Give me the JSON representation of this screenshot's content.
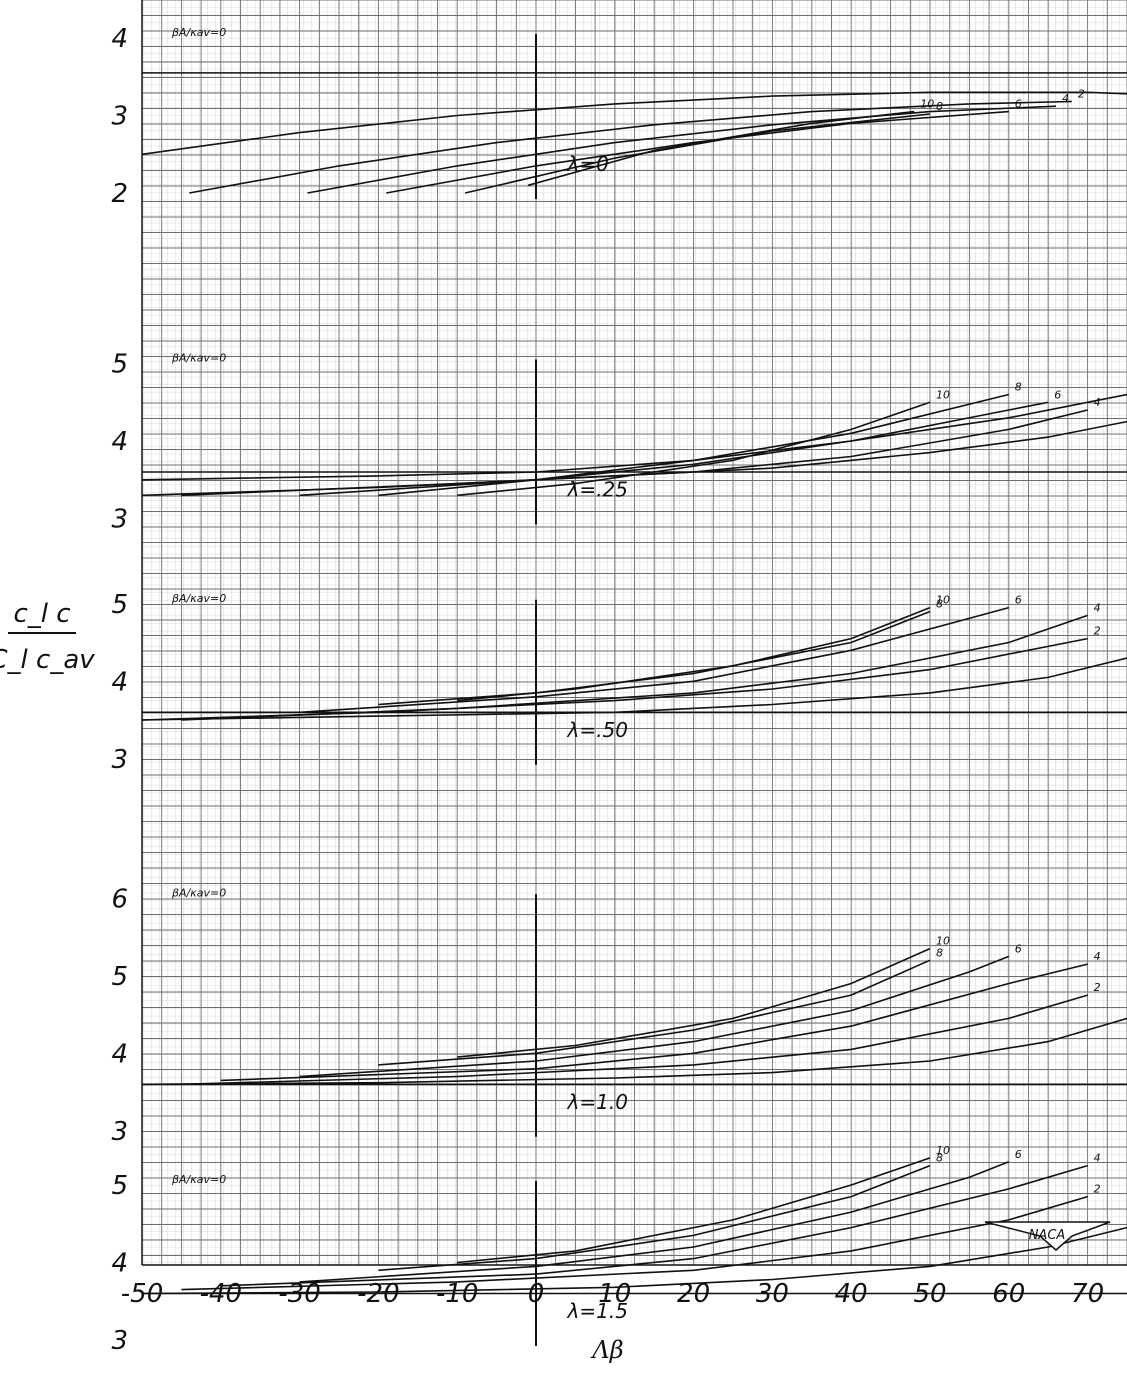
{
  "chart_data": {
    "type": "line",
    "xlabel": "Λβ",
    "ylabel_num": "c_l c",
    "ylabel_den": "C_l c_av",
    "x_ticks": [
      "-50",
      "-40",
      "-30",
      "-20",
      "-10",
      "0",
      "10",
      "20",
      "30",
      "40",
      "50",
      "60",
      "70"
    ],
    "xlim": [
      -50,
      75
    ],
    "grid": true,
    "param_label": "βA/κav",
    "param_labels": [
      "2",
      "4",
      "6",
      "8",
      "10"
    ],
    "logo_text": "NACA",
    "panels": [
      {
        "lambda_label": "λ=0",
        "y_ticks": [
          "4",
          "3",
          "2"
        ],
        "y_ticks_rows": [
          1.0,
          2.0,
          3.0
        ],
        "series": [
          {
            "name": "0",
            "x": [
              -50,
              -30,
              -10,
              10,
              30,
              50,
              70,
              75
            ],
            "y": [
              2.5,
              2.78,
              3.0,
              3.15,
              3.25,
              3.3,
              3.3,
              3.28
            ]
          },
          {
            "name": "2",
            "x": [
              -44,
              -25,
              -5,
              15,
              35,
              55,
              68
            ],
            "y": [
              2.0,
              2.35,
              2.65,
              2.88,
              3.05,
              3.15,
              3.18
            ]
          },
          {
            "name": "4",
            "x": [
              -29,
              -10,
              10,
              30,
              50,
              66
            ],
            "y": [
              2.0,
              2.35,
              2.65,
              2.88,
              3.05,
              3.12
            ]
          },
          {
            "name": "6",
            "x": [
              -19,
              0,
              20,
              40,
              60
            ],
            "y": [
              2.0,
              2.35,
              2.65,
              2.9,
              3.05
            ]
          },
          {
            "name": "8",
            "x": [
              -9,
              10,
              30,
              50
            ],
            "y": [
              2.0,
              2.45,
              2.8,
              3.02
            ]
          },
          {
            "name": "10",
            "x": [
              -1,
              15,
              35,
              48
            ],
            "y": [
              2.1,
              2.55,
              2.9,
              3.05
            ]
          }
        ]
      },
      {
        "lambda_label": "λ=.25",
        "y_ticks": [
          "5",
          "4",
          "3"
        ],
        "y_ticks_rows": [
          4.0,
          5.0,
          6.0
        ],
        "series": [
          {
            "name": "0",
            "x": [
              -50,
              -20,
              0,
              20,
              40,
              60,
              75
            ],
            "y": [
              3.5,
              3.55,
              3.6,
              3.75,
              4.0,
              4.3,
              4.6
            ]
          },
          {
            "name": "2",
            "x": [
              -50,
              -20,
              10,
              30,
              50,
              65,
              75
            ],
            "y": [
              3.3,
              3.4,
              3.55,
              3.65,
              3.85,
              4.05,
              4.25
            ]
          },
          {
            "name": "4",
            "x": [
              -45,
              -10,
              20,
              40,
              60,
              70
            ],
            "y": [
              3.3,
              3.45,
              3.6,
              3.8,
              4.15,
              4.4
            ]
          },
          {
            "name": "6",
            "x": [
              -30,
              0,
              20,
              40,
              60,
              65
            ],
            "y": [
              3.3,
              3.5,
              3.7,
              4.0,
              4.4,
              4.5
            ]
          },
          {
            "name": "8",
            "x": [
              -20,
              0,
              20,
              40,
              60
            ],
            "y": [
              3.3,
              3.5,
              3.75,
              4.1,
              4.6
            ]
          },
          {
            "name": "10",
            "x": [
              -10,
              5,
              25,
              40,
              50
            ],
            "y": [
              3.3,
              3.45,
              3.75,
              4.15,
              4.5
            ]
          }
        ]
      },
      {
        "lambda_label": "λ=.50",
        "y_ticks": [
          "5",
          "4",
          "3"
        ],
        "y_ticks_rows": [
          7.0,
          8.0,
          9.0
        ],
        "series": [
          {
            "name": "0",
            "x": [
              -50,
              -20,
              10,
              30,
              50,
              65,
              75
            ],
            "y": [
              3.5,
              3.55,
              3.6,
              3.7,
              3.85,
              4.05,
              4.3
            ]
          },
          {
            "name": "2",
            "x": [
              -50,
              -20,
              10,
              30,
              50,
              70
            ],
            "y": [
              3.5,
              3.6,
              3.75,
              3.9,
              4.15,
              4.55
            ]
          },
          {
            "name": "4",
            "x": [
              -45,
              -10,
              20,
              40,
              60,
              70
            ],
            "y": [
              3.5,
              3.65,
              3.85,
              4.1,
              4.5,
              4.85
            ]
          },
          {
            "name": "6",
            "x": [
              -30,
              0,
              20,
              40,
              60
            ],
            "y": [
              3.6,
              3.8,
              4.0,
              4.4,
              4.95
            ]
          },
          {
            "name": "8",
            "x": [
              -20,
              0,
              20,
              40,
              50
            ],
            "y": [
              3.7,
              3.85,
              4.1,
              4.5,
              4.9
            ]
          },
          {
            "name": "10",
            "x": [
              -10,
              5,
              25,
              40,
              50
            ],
            "y": [
              3.75,
              3.9,
              4.2,
              4.55,
              4.95
            ]
          }
        ]
      },
      {
        "lambda_label": "λ=1.0",
        "y_ticks": [
          "6",
          "5",
          "4",
          "3"
        ],
        "y_ticks_rows": [
          10.0,
          11.0,
          12.0,
          13.0
        ],
        "series": [
          {
            "name": "0",
            "x": [
              -50,
              -20,
              10,
              30,
              50,
              65,
              75
            ],
            "y": [
              3.6,
              3.62,
              3.68,
              3.75,
              3.9,
              4.15,
              4.45
            ]
          },
          {
            "name": "2",
            "x": [
              -45,
              -10,
              20,
              40,
              60,
              70
            ],
            "y": [
              3.6,
              3.7,
              3.85,
              4.05,
              4.45,
              4.75
            ]
          },
          {
            "name": "4",
            "x": [
              -40,
              0,
              20,
              40,
              60,
              70
            ],
            "y": [
              3.65,
              3.8,
              4.0,
              4.35,
              4.9,
              5.15
            ]
          },
          {
            "name": "6",
            "x": [
              -30,
              0,
              20,
              40,
              55,
              60
            ],
            "y": [
              3.7,
              3.9,
              4.15,
              4.55,
              5.05,
              5.25
            ]
          },
          {
            "name": "8",
            "x": [
              -20,
              0,
              20,
              40,
              50
            ],
            "y": [
              3.85,
              4.0,
              4.3,
              4.75,
              5.2
            ]
          },
          {
            "name": "10",
            "x": [
              -10,
              5,
              25,
              40,
              50
            ],
            "y": [
              3.95,
              4.1,
              4.45,
              4.9,
              5.35
            ]
          }
        ]
      },
      {
        "lambda_label": "λ=1.5",
        "y_ticks": [
          "5",
          "4",
          "3"
        ],
        "y_ticks_rows": [
          14.0,
          15.0,
          16.0
        ],
        "series": [
          {
            "name": "0",
            "x": [
              -50,
              -20,
              10,
              30,
              50,
              65,
              75
            ],
            "y": [
              3.6,
              3.62,
              3.68,
              3.78,
              3.95,
              4.2,
              4.45
            ]
          },
          {
            "name": "2",
            "x": [
              -45,
              -10,
              20,
              40,
              60,
              70
            ],
            "y": [
              3.65,
              3.75,
              3.9,
              4.15,
              4.55,
              4.85
            ]
          },
          {
            "name": "4",
            "x": [
              -40,
              0,
              20,
              40,
              60,
              70
            ],
            "y": [
              3.7,
              3.85,
              4.05,
              4.45,
              4.95,
              5.25
            ]
          },
          {
            "name": "6",
            "x": [
              -30,
              0,
              20,
              40,
              55,
              60
            ],
            "y": [
              3.75,
              3.95,
              4.2,
              4.65,
              5.1,
              5.3
            ]
          },
          {
            "name": "8",
            "x": [
              -20,
              0,
              20,
              40,
              50
            ],
            "y": [
              3.9,
              4.05,
              4.35,
              4.85,
              5.25
            ]
          },
          {
            "name": "10",
            "x": [
              -10,
              5,
              25,
              40,
              50
            ],
            "y": [
              4.0,
              4.15,
              4.55,
              5.0,
              5.35
            ]
          }
        ]
      }
    ]
  }
}
